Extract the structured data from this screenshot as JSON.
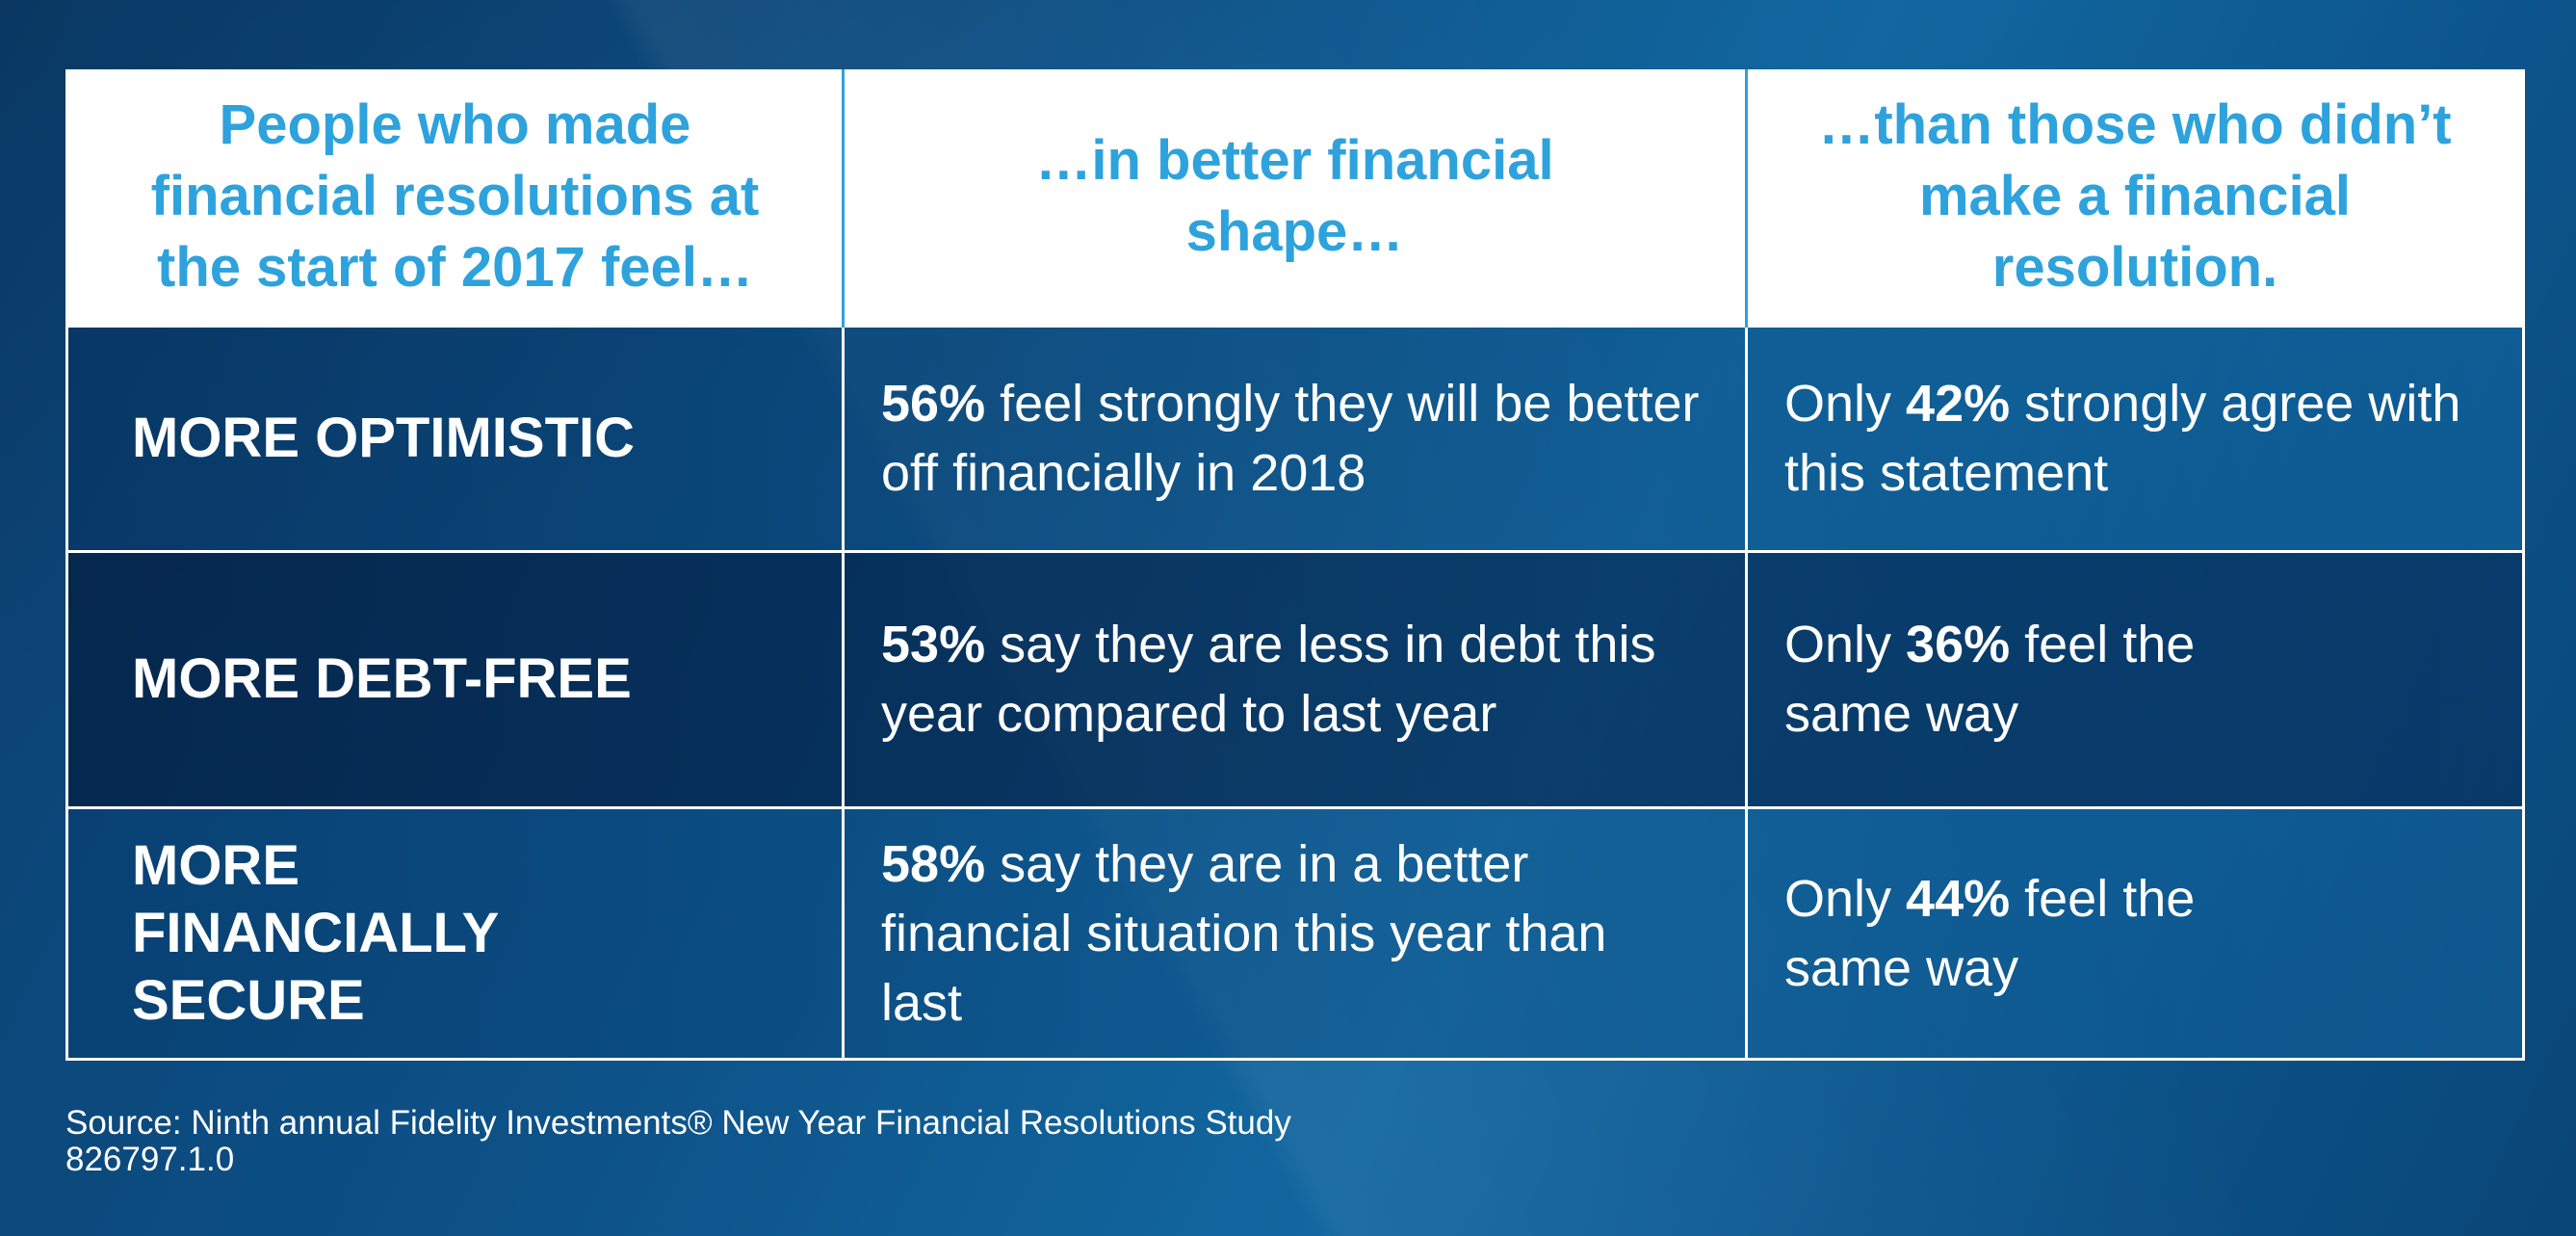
{
  "header": [
    "People who made financial resolutions at the start of 2017 feel…",
    "…in better financial shape…",
    "…than those who didn’t make a financial resolution."
  ],
  "rows": [
    {
      "label": "MORE OPTIMISTIC",
      "better_pct": "56%",
      "better_text": " feel strongly they will be better off financially in 2018",
      "other_pre": "Only ",
      "other_pct": "42%",
      "other_text": " strongly agree with this statement"
    },
    {
      "label": "MORE DEBT-FREE",
      "better_pct": "53%",
      "better_text": " say they are less in debt this year compared to last year",
      "other_pre": "Only ",
      "other_pct": "36%",
      "other_text": " feel the same way"
    },
    {
      "label": "MORE FINANCIALLY SECURE",
      "better_pct": "58%",
      "better_text": " say they are in a better financial situation this year than last",
      "other_pre": "Only ",
      "other_pct": "44%",
      "other_text": " feel the same way"
    }
  ],
  "footer": {
    "source": "Source: Ninth annual Fidelity Investments® New Year Financial Resolutions Study",
    "code": "826797.1.0"
  }
}
